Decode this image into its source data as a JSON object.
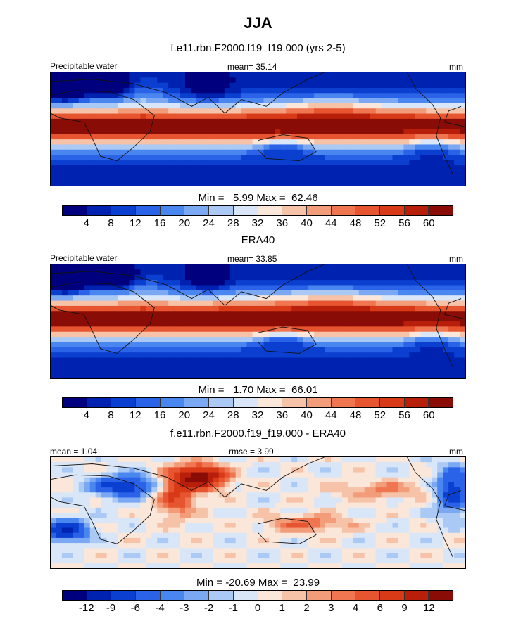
{
  "title": "JJA",
  "colors_abs": [
    "#00007f",
    "#0022b0",
    "#0a3fd0",
    "#2a62e8",
    "#4a86f0",
    "#7aa8f2",
    "#aac9f5",
    "#d8e6f8",
    "#fbe7da",
    "#f6c2a8",
    "#f39c7a",
    "#ef7650",
    "#e65530",
    "#d83a18",
    "#b81f0a",
    "#8a0c06"
  ],
  "colors_diff": [
    "#00007f",
    "#0022b0",
    "#0a3fd0",
    "#2a62e8",
    "#4a86f0",
    "#7aa8f2",
    "#aac9f5",
    "#d8e6f8",
    "#fbe7da",
    "#f6c2a8",
    "#f39c7a",
    "#ef7650",
    "#e65530",
    "#d83a18",
    "#b81f0a",
    "#8a0c06"
  ],
  "panels": [
    {
      "title": "f.e11.rbn.F2000.f19_f19.000 (yrs 2-5)",
      "left_label": "Precipitable water",
      "center_label": "mean=  35.14",
      "right_label": "mm",
      "minmax": "Min =   5.99 Max =  62.46",
      "ticks": [
        "4",
        "8",
        "12",
        "16",
        "20",
        "24",
        "28",
        "32",
        "36",
        "40",
        "44",
        "48",
        "52",
        "56",
        "60"
      ],
      "field": "model"
    },
    {
      "title": "ERA40",
      "left_label": "Precipitable water",
      "center_label": "mean=  33.85",
      "right_label": "mm",
      "minmax": "Min =   1.70 Max =  66.01",
      "ticks": [
        "4",
        "8",
        "12",
        "16",
        "20",
        "24",
        "28",
        "32",
        "36",
        "40",
        "44",
        "48",
        "52",
        "56",
        "60"
      ],
      "field": "obs"
    },
    {
      "title": "f.e11.rbn.F2000.f19_f19.000 - ERA40",
      "left_label": "mean =   1.04",
      "center_label": "rmse =   3.99",
      "right_label": "mm",
      "minmax": "Min = -20.69 Max =  23.99",
      "ticks": [
        "-12",
        "-9",
        "-6",
        "-4",
        "-3",
        "-2",
        "-1",
        "0",
        "1",
        "2",
        "3",
        "4",
        "6",
        "9",
        "12"
      ],
      "field": "diff"
    }
  ]
}
